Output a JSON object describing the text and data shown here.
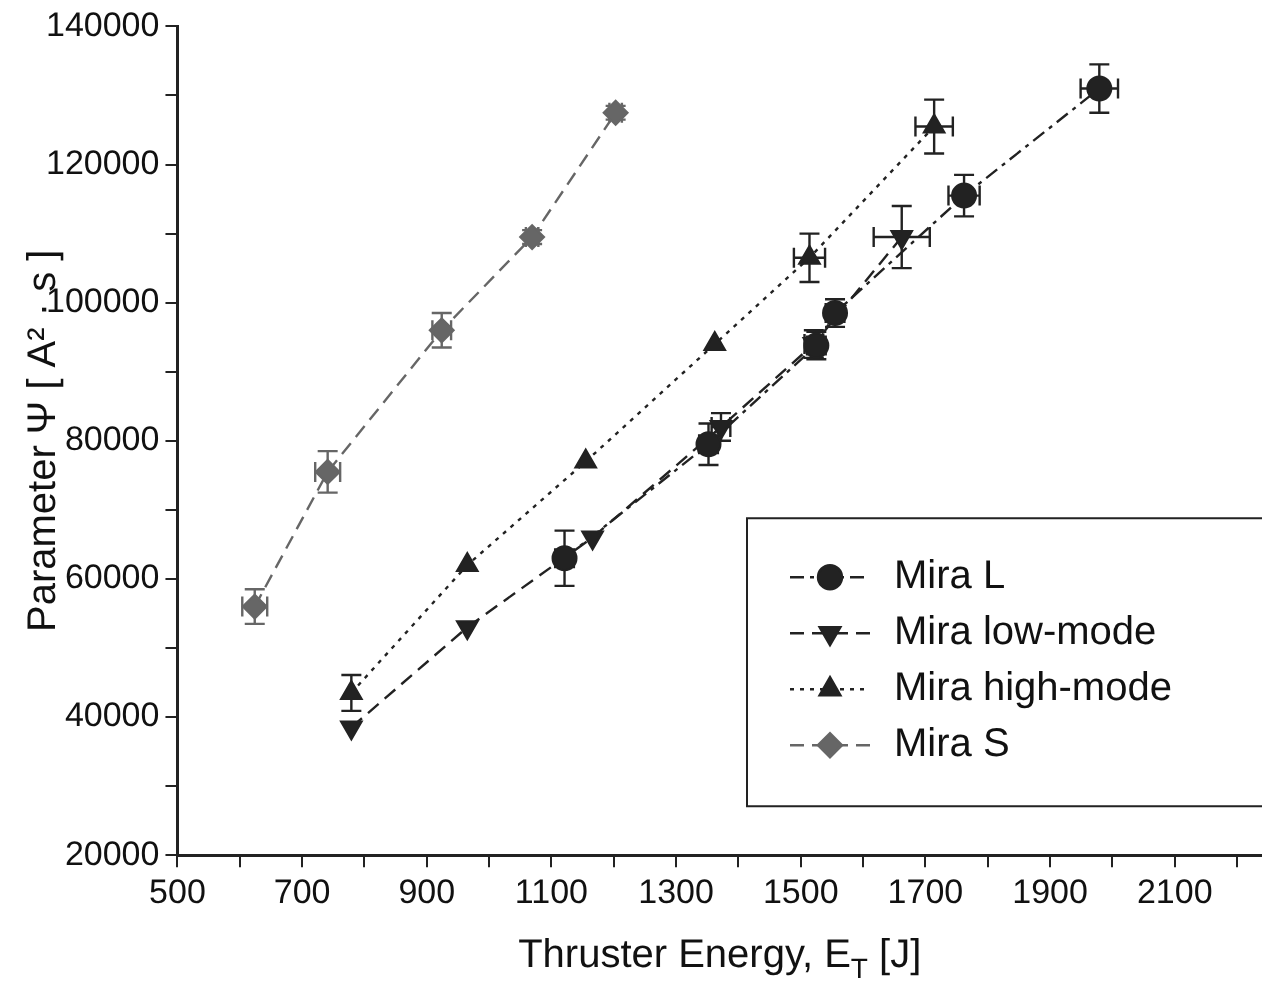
{
  "chart_data": {
    "type": "line",
    "xlabel": "Thruster Energy, E$_{T}$ [J]",
    "ylabel": "Parameter Ψ [ A² · s ]",
    "xlim": [
      500,
      2240
    ],
    "ylim": [
      20000,
      140000
    ],
    "xticks": [
      500,
      {
        "value": 600,
        "label": null
      },
      700,
      {
        "value": 800,
        "label": null
      },
      900,
      {
        "value": 1000,
        "label": null
      },
      1100,
      {
        "value": 1200,
        "label": null
      },
      1300,
      {
        "value": 1400,
        "label": null
      },
      1500,
      {
        "value": 1600,
        "label": null
      },
      1700,
      {
        "value": 1800,
        "label": null
      },
      1900,
      {
        "value": 2000,
        "label": null
      },
      2100,
      {
        "value": 2200,
        "label": null
      }
    ],
    "yticks": [
      20000,
      {
        "value": 30000,
        "label": null
      },
      40000,
      {
        "value": 50000,
        "label": null
      },
      60000,
      {
        "value": 70000,
        "label": null
      },
      80000,
      {
        "value": 90000,
        "label": null
      },
      100000,
      {
        "value": 110000,
        "label": null
      },
      120000,
      {
        "value": 130000,
        "label": null
      },
      140000
    ],
    "grid": false,
    "legend": "bottom right",
    "series": [
      {
        "name": "Mira L",
        "color": "#222222",
        "marker": "circle",
        "line_style": "dashdot",
        "x": [
          1121,
          1352,
          1525,
          1555,
          1762,
          1979
        ],
        "values": [
          63000,
          79500,
          93800,
          98500,
          115500,
          131000
        ],
        "errors": [
          4000,
          3000,
          2000,
          2000,
          3000,
          3500
        ],
        "xerrors": [
          15,
          15,
          15,
          15,
          25,
          30
        ]
      },
      {
        "name": "Mira low-mode",
        "color": "#222222",
        "marker": "triangle_down",
        "line_style": "dashed",
        "x": [
          779,
          965,
          1166,
          1372,
          1521,
          1662
        ],
        "values": [
          38500,
          53000,
          66000,
          82000,
          94000,
          109500
        ],
        "errors": [
          null,
          null,
          null,
          2000,
          2000,
          4500
        ],
        "xerrors": [
          null,
          null,
          null,
          15,
          15,
          45
        ]
      },
      {
        "name": "Mira high-mode",
        "color": "#222222",
        "marker": "triangle",
        "line_style": "dotted",
        "x": [
          779,
          965,
          1155,
          1362,
          1514,
          1714
        ],
        "values": [
          43500,
          62000,
          77000,
          94000,
          106500,
          125500
        ],
        "errors": [
          2600,
          null,
          null,
          null,
          3500,
          3900
        ],
        "xerrors": [
          null,
          null,
          null,
          null,
          25,
          30
        ]
      },
      {
        "name": "Mira S",
        "color": "#666666",
        "marker": "diamond",
        "line_style": "dashed",
        "x": [
          624,
          741,
          924,
          1069,
          1203
        ],
        "values": [
          56000,
          75500,
          96000,
          109500,
          127500
        ],
        "errors": [
          2500,
          3000,
          2500,
          1000,
          1000
        ],
        "xerrors": [
          20,
          20,
          15,
          10,
          10
        ]
      }
    ]
  }
}
